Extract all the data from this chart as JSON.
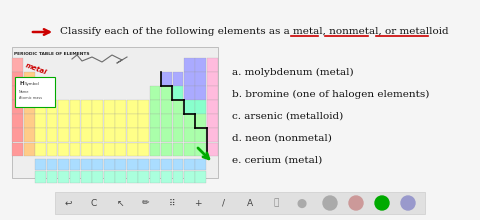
{
  "background_color": "#f5f5f5",
  "arrow_color": "#cc0000",
  "title_text": "Classify each of the following elements as a metal, nonmetal, or metalloid",
  "list_items": [
    "a. molybdenum (metal)",
    "b. bromine (one of halogen elements)",
    "c. arsenic (metalloid)",
    "d. neon (nonmetal)",
    "e. cerium (metal)"
  ],
  "pt_label": "PERIODIC TABLE OF ELEMENTS",
  "toolbar_bg": "#e0e0e0"
}
